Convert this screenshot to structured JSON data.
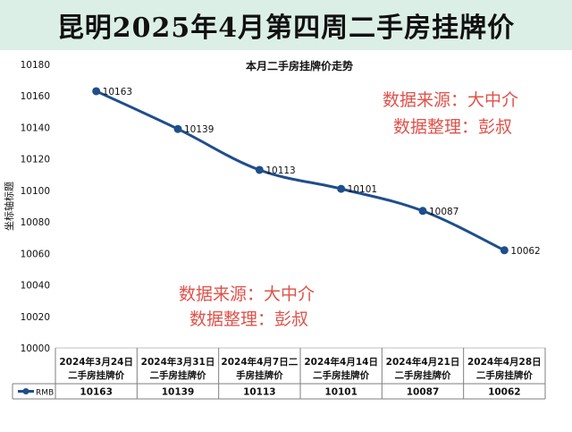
{
  "header": {
    "title": "昆明2025年4月第四周二手房挂牌价"
  },
  "watermark": {
    "line1": "数据来源：大中介",
    "line2": "数据整理：彭叔"
  },
  "chart_data": {
    "type": "line",
    "title": "本月二手房挂牌价走势",
    "ylabel": "坐标轴标题",
    "xlabel": "",
    "ylim": [
      10000,
      10180
    ],
    "yticks": [
      10000,
      10020,
      10040,
      10060,
      10080,
      10100,
      10120,
      10140,
      10160,
      10180
    ],
    "categories": [
      [
        "2024年3月24日",
        "二手房挂牌价"
      ],
      [
        "2024年3月31日",
        "二手房挂牌价"
      ],
      [
        "2024年4月7日二",
        "手房挂牌价"
      ],
      [
        "2024年4月14日",
        "二手房挂牌价"
      ],
      [
        "2024年4月21日",
        "二手房挂牌价"
      ],
      [
        "2024年4月28日",
        "二手房挂牌价"
      ]
    ],
    "series": [
      {
        "name": "RMB",
        "color": "#1f4e8c",
        "values": [
          10163,
          10139,
          10113,
          10101,
          10087,
          10062
        ]
      }
    ],
    "grid": false,
    "data_table": true
  }
}
